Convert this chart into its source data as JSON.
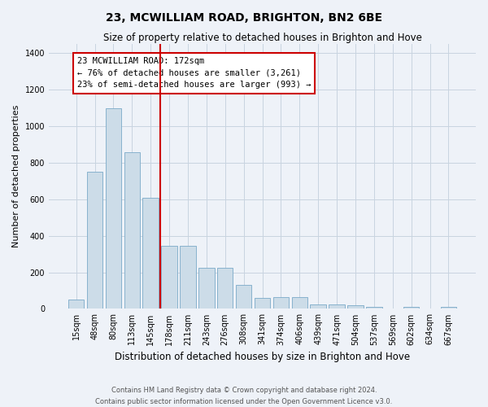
{
  "title": "23, MCWILLIAM ROAD, BRIGHTON, BN2 6BE",
  "subtitle": "Size of property relative to detached houses in Brighton and Hove",
  "xlabel": "Distribution of detached houses by size in Brighton and Hove",
  "ylabel": "Number of detached properties",
  "footnote1": "Contains HM Land Registry data © Crown copyright and database right 2024.",
  "footnote2": "Contains public sector information licensed under the Open Government Licence v3.0.",
  "categories": [
    "15sqm",
    "48sqm",
    "80sqm",
    "113sqm",
    "145sqm",
    "178sqm",
    "211sqm",
    "243sqm",
    "276sqm",
    "308sqm",
    "341sqm",
    "374sqm",
    "406sqm",
    "439sqm",
    "471sqm",
    "504sqm",
    "537sqm",
    "569sqm",
    "602sqm",
    "634sqm",
    "667sqm"
  ],
  "values": [
    50,
    750,
    1100,
    860,
    610,
    345,
    345,
    225,
    225,
    130,
    60,
    65,
    65,
    25,
    25,
    20,
    10,
    0,
    10,
    0,
    10
  ],
  "bar_color": "#ccdce8",
  "bar_edge_color": "#7aaac8",
  "grid_color": "#c8d4e0",
  "background_color": "#eef2f8",
  "vline_color": "#cc0000",
  "vline_x": 4.5,
  "annotation_text": "23 MCWILLIAM ROAD: 172sqm\n← 76% of detached houses are smaller (3,261)\n23% of semi-detached houses are larger (993) →",
  "annotation_box_color": "#ffffff",
  "annotation_box_edge": "#cc0000",
  "ylim": [
    0,
    1450
  ],
  "yticks": [
    0,
    200,
    400,
    600,
    800,
    1000,
    1200,
    1400
  ],
  "title_fontsize": 10,
  "subtitle_fontsize": 8.5,
  "ylabel_fontsize": 8,
  "xlabel_fontsize": 8.5,
  "tick_fontsize": 7,
  "annot_fontsize": 7.5,
  "footnote_fontsize": 6
}
